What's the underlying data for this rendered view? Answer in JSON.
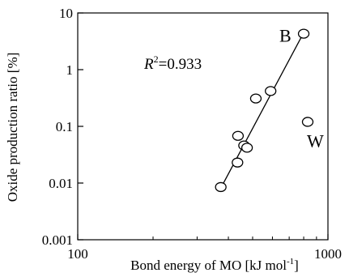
{
  "chart_data": {
    "type": "scatter",
    "xscale": "log",
    "yscale": "log",
    "xlim": [
      100,
      1000
    ],
    "ylim": [
      0.001,
      10
    ],
    "xlabel_main": "Bond energy of MO [kJ mol",
    "xlabel_sup": "-1",
    "xlabel_end": "]",
    "ylabel": "Oxide production ratio [%]",
    "x_tick_labels": [
      "100",
      "1000"
    ],
    "y_tick_labels": [
      "0.001",
      "0.01",
      "0.1",
      "1",
      "10"
    ],
    "annotation_r2": {
      "label": "R",
      "sup": "2",
      "value": "=0.933"
    },
    "points": [
      {
        "x": 800,
        "y": 4.3,
        "label": "B"
      },
      {
        "x": 830,
        "y": 0.12,
        "label": "W"
      },
      {
        "x": 590,
        "y": 0.42
      },
      {
        "x": 515,
        "y": 0.31
      },
      {
        "x": 437,
        "y": 0.068
      },
      {
        "x": 462,
        "y": 0.046
      },
      {
        "x": 475,
        "y": 0.042
      },
      {
        "x": 435,
        "y": 0.023
      },
      {
        "x": 373,
        "y": 0.0085
      }
    ],
    "fit_line": {
      "x": [
        375,
        800
      ],
      "y": [
        0.0085,
        4.5
      ]
    },
    "grid": false,
    "legend": "none"
  }
}
